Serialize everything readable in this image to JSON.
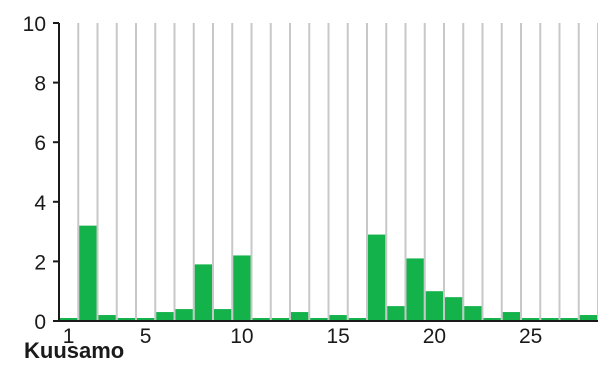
{
  "chart_data": {
    "type": "bar",
    "title": "Kuusamo",
    "xlabel": "",
    "ylabel": "",
    "x": [
      1,
      2,
      3,
      4,
      5,
      6,
      7,
      8,
      9,
      10,
      11,
      12,
      13,
      14,
      15,
      16,
      17,
      18,
      19,
      20,
      21,
      22,
      23,
      24,
      25,
      26,
      27,
      28
    ],
    "values": [
      0.1,
      3.2,
      0.2,
      0.1,
      0.1,
      0.3,
      0.4,
      1.9,
      0.4,
      2.2,
      0.1,
      0.1,
      0.3,
      0.1,
      0.2,
      0.1,
      2.9,
      0.5,
      2.1,
      1.0,
      0.8,
      0.5,
      0.1,
      0.3,
      0.1,
      0.1,
      0.1,
      0.2
    ],
    "ylim": [
      0,
      10
    ],
    "yticks": [
      0,
      2,
      4,
      6,
      8,
      10
    ],
    "xticks": [
      1,
      5,
      10,
      15,
      20,
      25
    ],
    "grid": "vertical",
    "bar_color": "#13b24a",
    "grid_color": "#c8c8c8",
    "axis_color": "#1a1a1a"
  }
}
